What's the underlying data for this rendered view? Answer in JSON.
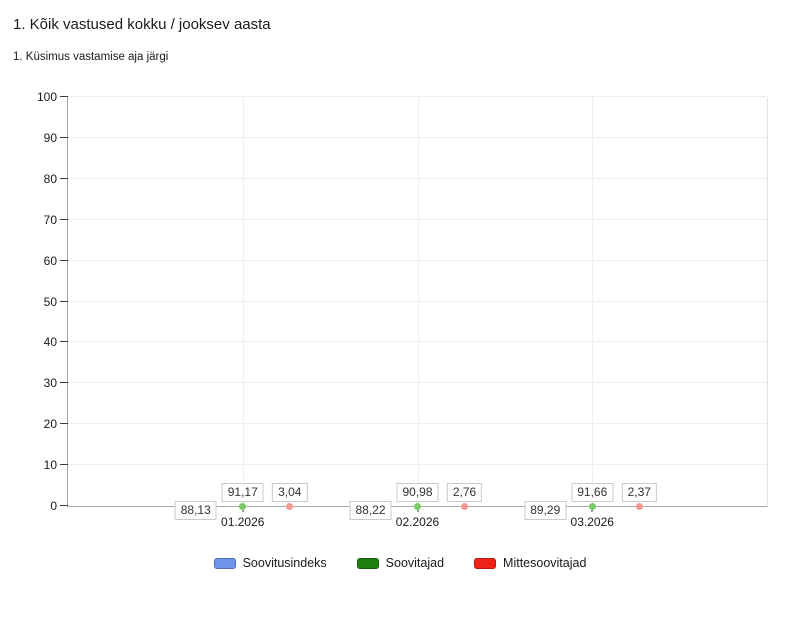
{
  "title": "1. Kõik vastused kokku / jooksev aasta",
  "subtitle": "1. Küsimus vastamise aja järgi",
  "chart_data": {
    "type": "bar",
    "title": "1. Kõik vastused kokku / jooksev aasta",
    "subtitle": "1. Küsimus vastamise aja järgi",
    "categories": [
      "01.2026",
      "02.2026",
      "03.2026"
    ],
    "series": [
      {
        "name": "Soovitusindeks",
        "values": [
          88.13,
          88.22,
          89.29
        ],
        "value_labels": [
          "88,13",
          "88,22",
          "89,29"
        ],
        "color": "#6d94e8",
        "glow_color": "#c3d3f7",
        "dot_color": "#a3bdf3",
        "label_position": "inside"
      },
      {
        "name": "Soovitajad",
        "values": [
          91.17,
          90.98,
          91.66
        ],
        "value_labels": [
          "91,17",
          "90,98",
          "91,66"
        ],
        "color": "#1e7e0e",
        "glow_color": "#b4eda4",
        "dot_color": "#79c967",
        "label_position": "above"
      },
      {
        "name": "Mittesoovitajad",
        "values": [
          3.04,
          2.76,
          2.37
        ],
        "value_labels": [
          "3,04",
          "2,76",
          "2,37"
        ],
        "color": "#ee2217",
        "glow_color": "#f9c0ba",
        "dot_color": "#f59a90",
        "label_position": "above"
      }
    ],
    "ylim": [
      0,
      100
    ],
    "yticks": [
      0,
      10,
      20,
      30,
      40,
      50,
      60,
      70,
      80,
      90,
      100
    ],
    "grid": true,
    "legend_position": "bottom",
    "axis_color": "#a9a9a9",
    "gridline_color": "#ededed"
  }
}
